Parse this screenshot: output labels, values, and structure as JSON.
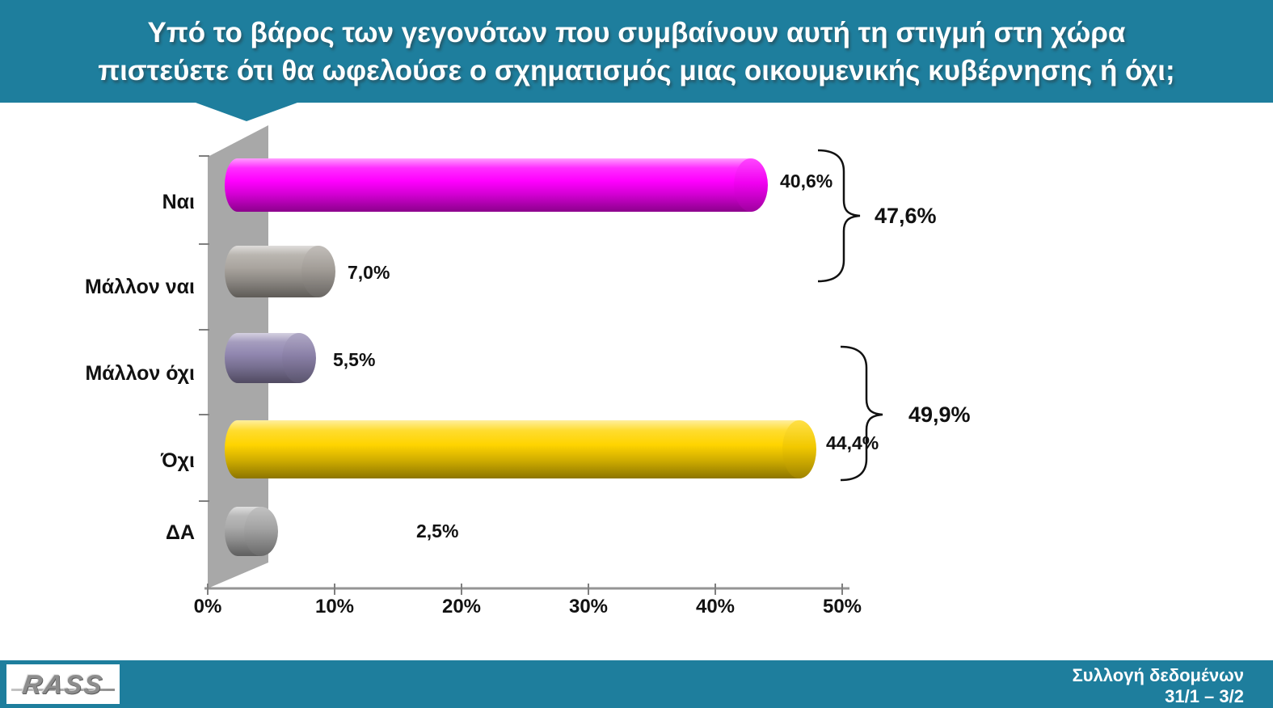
{
  "header": {
    "title_line1": "Υπό το βάρος των γεγονότων που συμβαίνουν αυτή τη στιγμή στη χώρα",
    "title_line2": "πιστεύετε ότι θα ωφελούσε ο σχηματισμός μιας οικουμενικής κυβέρνησης ή όχι;"
  },
  "chart_data": {
    "type": "bar",
    "orientation": "horizontal",
    "categories": [
      "Ναι",
      "Μάλλον ναι",
      "Μάλλον όχι",
      "Όχι",
      "ΔΑ"
    ],
    "values": [
      40.6,
      7.0,
      5.5,
      44.4,
      2.5
    ],
    "value_labels": [
      "40,6%",
      "7,0%",
      "5,5%",
      "44,4%",
      "2,5%"
    ],
    "bar_colors": [
      "#ff00ff",
      "#aaa59f",
      "#9187b0",
      "#ffd400",
      "#aaaaaa"
    ],
    "x_tick_labels": [
      "0%",
      "10%",
      "20%",
      "30%",
      "40%",
      "50%"
    ],
    "xlim": [
      0,
      50
    ],
    "grid": false,
    "wall_color": "#a8a8a8",
    "groups": [
      {
        "label": "47,6%",
        "value": 47.6,
        "members": [
          "Ναι",
          "Μάλλον ναι"
        ]
      },
      {
        "label": "49,9%",
        "value": 49.9,
        "members": [
          "Μάλλον όχι",
          "Όχι"
        ]
      }
    ]
  },
  "footer": {
    "logo_text": "RASS",
    "note_line1": "Συλλογή δεδομένων",
    "note_line2": "31/1 – 3/2"
  },
  "colors": {
    "accent_teal": "#1e7e9d",
    "text_dark": "#111111",
    "header_text": "#ffffff"
  }
}
